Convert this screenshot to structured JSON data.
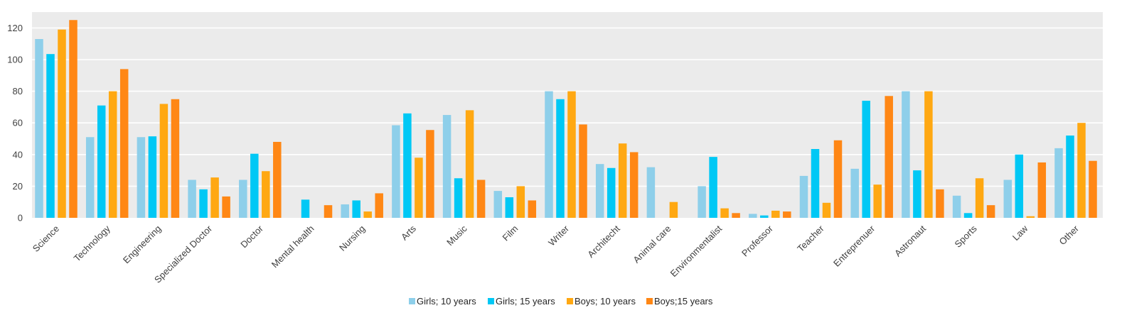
{
  "chart_data": {
    "type": "bar",
    "title": "",
    "xlabel": "",
    "ylabel": "",
    "ylim": [
      0,
      130
    ],
    "yticks": [
      0,
      20,
      40,
      60,
      80,
      100,
      120
    ],
    "grid": true,
    "legend_position": "bottom",
    "categories": [
      "Science",
      "Technology",
      "Engineering",
      "Specialized Doctor",
      "Doctor",
      "Mental health",
      "Nursing",
      "Arts",
      "Music",
      "Film",
      "Writer",
      "Architecht",
      "Animal care",
      "Environmentalist",
      "Professor",
      "Teacher",
      "Entreprenuer",
      "Astronaut",
      "Sports",
      "Law",
      "Other"
    ],
    "series": [
      {
        "name": "Girls; 10 years",
        "color": "#8ecfea",
        "values": [
          113,
          51,
          51,
          24,
          24,
          0,
          8.5,
          58.5,
          65,
          17,
          80,
          34,
          32,
          20,
          2.5,
          26.5,
          31,
          80,
          14,
          24,
          44
        ]
      },
      {
        "name": "Girls; 15 years",
        "color": "#00c8f5",
        "values": [
          103.5,
          71,
          51.5,
          18,
          40.5,
          11.5,
          11,
          66,
          25,
          13,
          75,
          31.5,
          0,
          38.5,
          1.5,
          43.5,
          74,
          30,
          3,
          40,
          52
        ]
      },
      {
        "name": "Boys; 10 years",
        "color": "#ffa812",
        "values": [
          119,
          80,
          72,
          25.5,
          29.5,
          0,
          4,
          38,
          68,
          20,
          80,
          47,
          10,
          6,
          4.5,
          9.5,
          21,
          80,
          25,
          1,
          60
        ]
      },
      {
        "name": "Boys;15 years",
        "color": "#ff8715",
        "values": [
          125,
          94,
          75,
          13.5,
          48,
          8,
          15.5,
          55.5,
          24,
          11,
          59,
          41.5,
          0,
          3,
          4,
          49,
          77,
          18,
          8,
          35,
          36
        ]
      }
    ],
    "colors": {
      "plot_background": "#ebebeb",
      "gridline": "#ffffff",
      "tick_text": "#404040"
    }
  }
}
